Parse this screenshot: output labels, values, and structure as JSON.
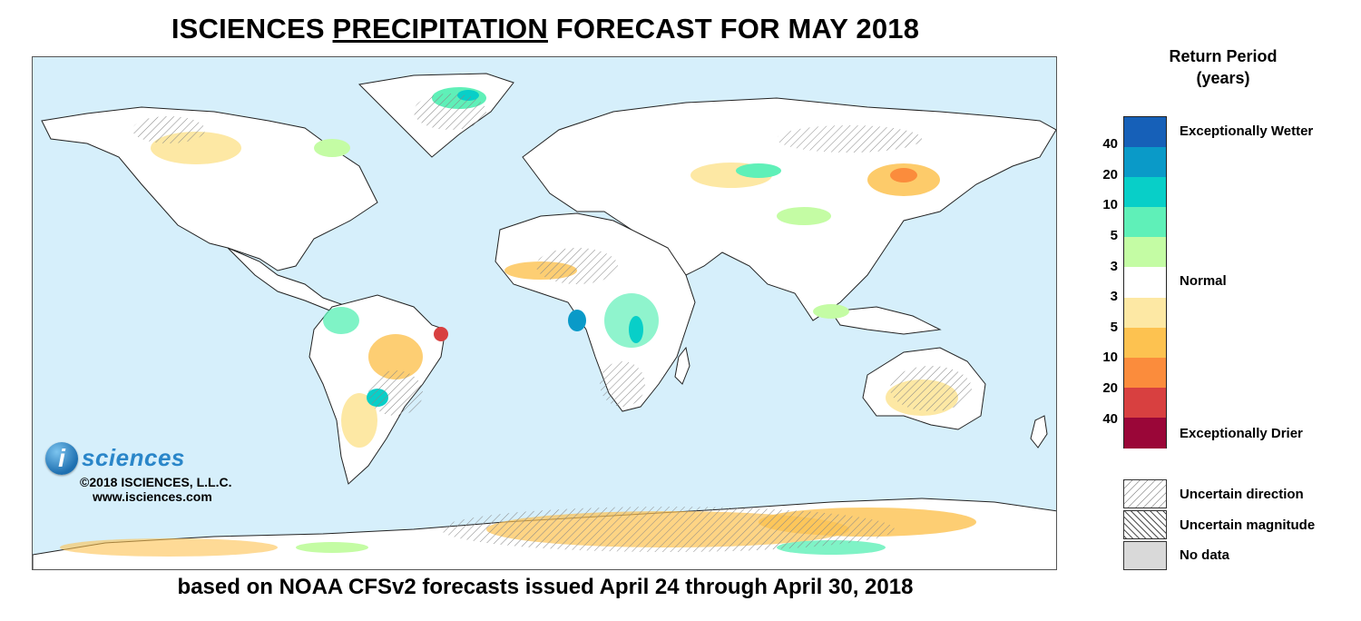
{
  "title": {
    "part1": "ISCIENCES ",
    "part2": "PRECIPITATION",
    "part3": " FORECAST FOR MAY 2018"
  },
  "subtitle": "based on NOAA CFSv2 forecasts issued April 24 through April 30, 2018",
  "logo": {
    "mark": "i",
    "word": "sciences",
    "copyright": "©2018 ISCIENCES, L.L.C.",
    "url": "www.isciences.com"
  },
  "legend": {
    "title_line1": "Return Period",
    "title_line2": "(years)",
    "wet_ticks": [
      "40",
      "20",
      "10",
      "5",
      "3"
    ],
    "dry_ticks": [
      "3",
      "5",
      "10",
      "20",
      "40"
    ],
    "wet_label": "Exceptionally Wetter",
    "normal_label": "Normal",
    "dry_label": "Exceptionally Drier",
    "colors": [
      "#1660b8",
      "#0a9ac8",
      "#08cfc8",
      "#5ff0b8",
      "#c4fca4",
      "#ffffff",
      "#fde8a4",
      "#fdc250",
      "#fb8c3c",
      "#d84040",
      "#9a0638"
    ],
    "hatch": [
      {
        "label": "Uncertain direction",
        "pattern": "diag-light"
      },
      {
        "label": "Uncertain magnitude",
        "pattern": "diag-heavy"
      },
      {
        "label": "No data",
        "pattern": "gray"
      }
    ]
  },
  "map": {
    "ocean_color": "#d6effb",
    "land_color": "#ffffff"
  }
}
